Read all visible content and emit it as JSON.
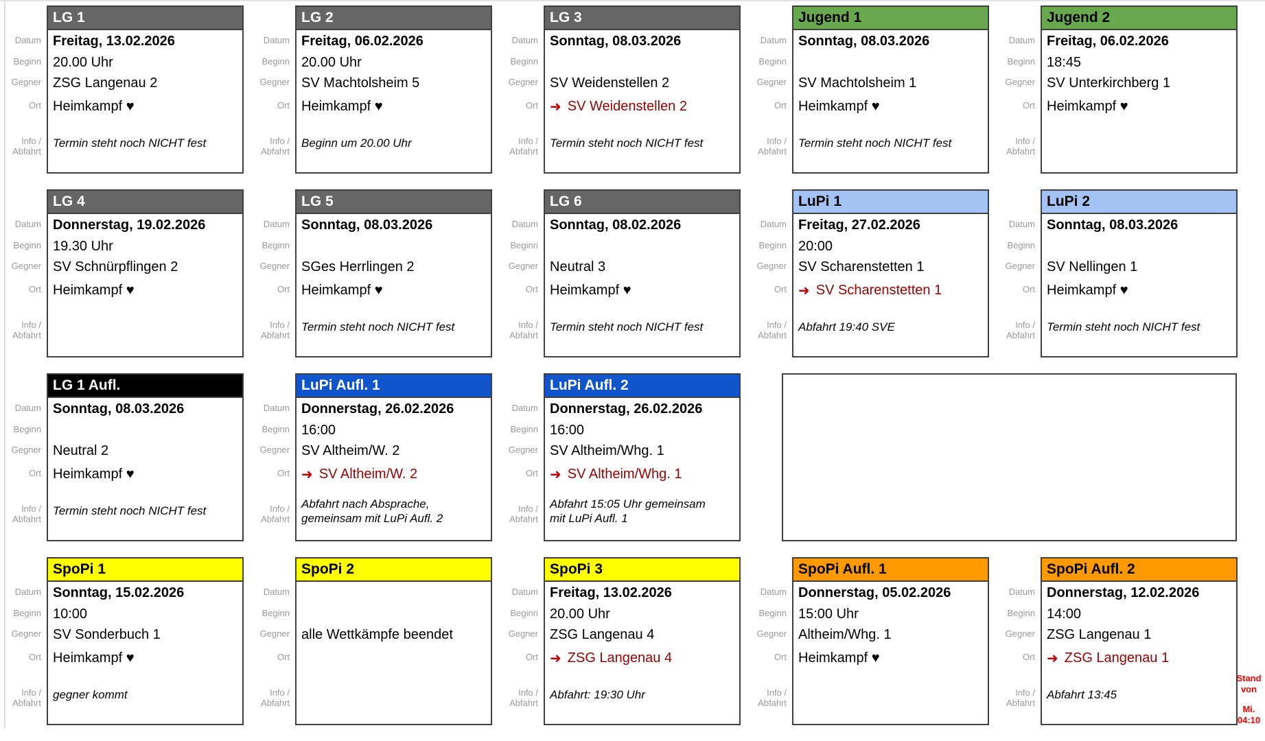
{
  "labels": {
    "datum": "Datum",
    "beginn": "Beginn",
    "gegner": "Gegner",
    "ort": "Ort",
    "info_line1": "Info /",
    "info_line2": "Abfahrt"
  },
  "icons": {
    "away_arrow": "➜"
  },
  "colors": {
    "header_gray": "#666666",
    "header_green": "#6aa84f",
    "header_lightblue": "#a4c2f4",
    "header_blue": "#1155cc",
    "header_black": "#000000",
    "header_yellow": "#ffff00",
    "header_orange": "#ff9900",
    "away_red": "#990000",
    "note_red": "#ff0000",
    "label_gray": "#999999"
  },
  "stand_note": {
    "line1": "Stand von",
    "line2": "Mi. 04:10"
  },
  "cards": [
    {
      "title": "LG 1",
      "header_bg": "#666666",
      "header_fg": "#ffffff",
      "row": 0,
      "col": 0,
      "datum": "Freitag, 13.02.2026",
      "beginn": "20.00 Uhr",
      "gegner": "ZSG Langenau 2",
      "ort": "Heimkampf ♥",
      "away": false,
      "info": "Termin steht noch NICHT fest"
    },
    {
      "title": "LG 2",
      "header_bg": "#666666",
      "header_fg": "#ffffff",
      "row": 0,
      "col": 1,
      "datum": "Freitag, 06.02.2026",
      "beginn": "20.00 Uhr",
      "gegner": "SV Machtolsheim 5",
      "ort": "Heimkampf ♥",
      "away": false,
      "info": "Beginn um 20.00 Uhr"
    },
    {
      "title": "LG 3",
      "header_bg": "#666666",
      "header_fg": "#ffffff",
      "row": 0,
      "col": 2,
      "datum": "Sonntag, 08.03.2026",
      "beginn": "",
      "gegner": "SV Weidenstellen 2",
      "ort": "SV Weidenstellen 2",
      "away": true,
      "info": "Termin steht noch NICHT fest"
    },
    {
      "title": "Jugend 1",
      "header_bg": "#6aa84f",
      "header_fg": "#000000",
      "row": 0,
      "col": 3,
      "datum": "Sonntag, 08.03.2026",
      "beginn": "",
      "gegner": "SV Machtolsheim 1",
      "ort": "Heimkampf ♥",
      "away": false,
      "info": "Termin steht noch NICHT fest"
    },
    {
      "title": "Jugend 2",
      "header_bg": "#6aa84f",
      "header_fg": "#000000",
      "row": 0,
      "col": 4,
      "datum": "Freitag, 06.02.2026",
      "beginn": "18:45",
      "gegner": "SV Unterkirchberg 1",
      "ort": "Heimkampf ♥",
      "away": false,
      "info": ""
    },
    {
      "title": "LG 4",
      "header_bg": "#666666",
      "header_fg": "#ffffff",
      "row": 1,
      "col": 0,
      "datum": "Donnerstag, 19.02.2026",
      "beginn": "19.30 Uhr",
      "gegner": "SV Schnürpflingen 2",
      "ort": "Heimkampf ♥",
      "away": false,
      "info": ""
    },
    {
      "title": "LG 5",
      "header_bg": "#666666",
      "header_fg": "#ffffff",
      "row": 1,
      "col": 1,
      "datum": "Sonntag, 08.03.2026",
      "beginn": "",
      "gegner": "SGes Herrlingen 2",
      "ort": "Heimkampf ♥",
      "away": false,
      "info": "Termin steht noch NICHT fest"
    },
    {
      "title": "LG 6",
      "header_bg": "#666666",
      "header_fg": "#ffffff",
      "row": 1,
      "col": 2,
      "datum": "Sonntag, 08.02.2026",
      "beginn": "",
      "gegner": "Neutral 3",
      "ort": "Heimkampf ♥",
      "away": false,
      "info": "Termin steht noch NICHT fest"
    },
    {
      "title": "LuPi 1",
      "header_bg": "#a4c2f4",
      "header_fg": "#000000",
      "row": 1,
      "col": 3,
      "datum": "Freitag, 27.02.2026",
      "beginn": "20:00",
      "gegner": "SV Scharenstetten 1",
      "ort": "SV Scharenstetten 1",
      "away": true,
      "info": "Abfahrt 19:40 SVE"
    },
    {
      "title": "LuPi 2",
      "header_bg": "#a4c2f4",
      "header_fg": "#000000",
      "row": 1,
      "col": 4,
      "datum": "Sonntag, 08.03.2026",
      "beginn": "",
      "gegner": "SV Nellingen 1",
      "ort": "Heimkampf ♥",
      "away": false,
      "info": "Termin steht noch NICHT fest"
    },
    {
      "title": "LG 1 Aufl.",
      "header_bg": "#000000",
      "header_fg": "#ffffff",
      "row": 2,
      "col": 0,
      "datum": "Sonntag, 08.03.2026",
      "beginn": "",
      "gegner": "Neutral 2",
      "ort": "Heimkampf ♥",
      "away": false,
      "info": "Termin steht noch NICHT fest"
    },
    {
      "title": "LuPi Aufl. 1",
      "header_bg": "#1155cc",
      "header_fg": "#ffffff",
      "row": 2,
      "col": 1,
      "datum": "Donnerstag, 26.02.2026",
      "beginn": "16:00",
      "gegner": "SV Altheim/W. 2",
      "ort": "SV Altheim/W. 2",
      "away": true,
      "info": "Abfahrt nach Absprache,\ngemeinsam mit LuPi Aufl. 2"
    },
    {
      "title": "LuPi Aufl. 2",
      "header_bg": "#1155cc",
      "header_fg": "#ffffff",
      "row": 2,
      "col": 2,
      "datum": "Donnerstag, 26.02.2026",
      "beginn": "16:00",
      "gegner": "SV Altheim/Whg. 1",
      "ort": "SV Altheim/Whg. 1",
      "away": true,
      "info": "Abfahrt 15:05 Uhr gemeinsam\nmit LuPi Aufl. 1"
    },
    {
      "title": "SpoPi 1",
      "header_bg": "#ffff00",
      "header_fg": "#000000",
      "row": 3,
      "col": 0,
      "datum": "Sonntag, 15.02.2026",
      "beginn": "10:00",
      "gegner": "SV Sonderbuch 1",
      "ort": "Heimkampf ♥",
      "away": false,
      "info": "gegner kommt"
    },
    {
      "title": "SpoPi 2",
      "header_bg": "#ffff00",
      "header_fg": "#000000",
      "row": 3,
      "col": 1,
      "datum": "",
      "beginn": "",
      "gegner": "alle Wettkämpfe beendet",
      "ort": "",
      "away": false,
      "info": ""
    },
    {
      "title": "SpoPi 3",
      "header_bg": "#ffff00",
      "header_fg": "#000000",
      "row": 3,
      "col": 2,
      "datum": "Freitag, 13.02.2026",
      "beginn": "20.00 Uhr",
      "gegner": "ZSG Langenau 4",
      "ort": "ZSG Langenau 4",
      "away": true,
      "info": "Abfahrt: 19:30 Uhr"
    },
    {
      "title": "SpoPi Aufl. 1",
      "header_bg": "#ff9900",
      "header_fg": "#000000",
      "row": 3,
      "col": 3,
      "datum": "Donnerstag, 05.02.2026",
      "beginn": "15:00 Uhr",
      "gegner": "Altheim/Whg. 1",
      "ort": "Heimkampf ♥",
      "away": false,
      "info": ""
    },
    {
      "title": "SpoPi Aufl. 2",
      "header_bg": "#ff9900",
      "header_fg": "#000000",
      "row": 3,
      "col": 4,
      "datum": "Donnerstag, 12.02.2026",
      "beginn": "14:00",
      "gegner": "ZSG Langenau 1",
      "ort": "ZSG Langenau 1",
      "away": true,
      "info": "Abfahrt 13:45"
    }
  ]
}
